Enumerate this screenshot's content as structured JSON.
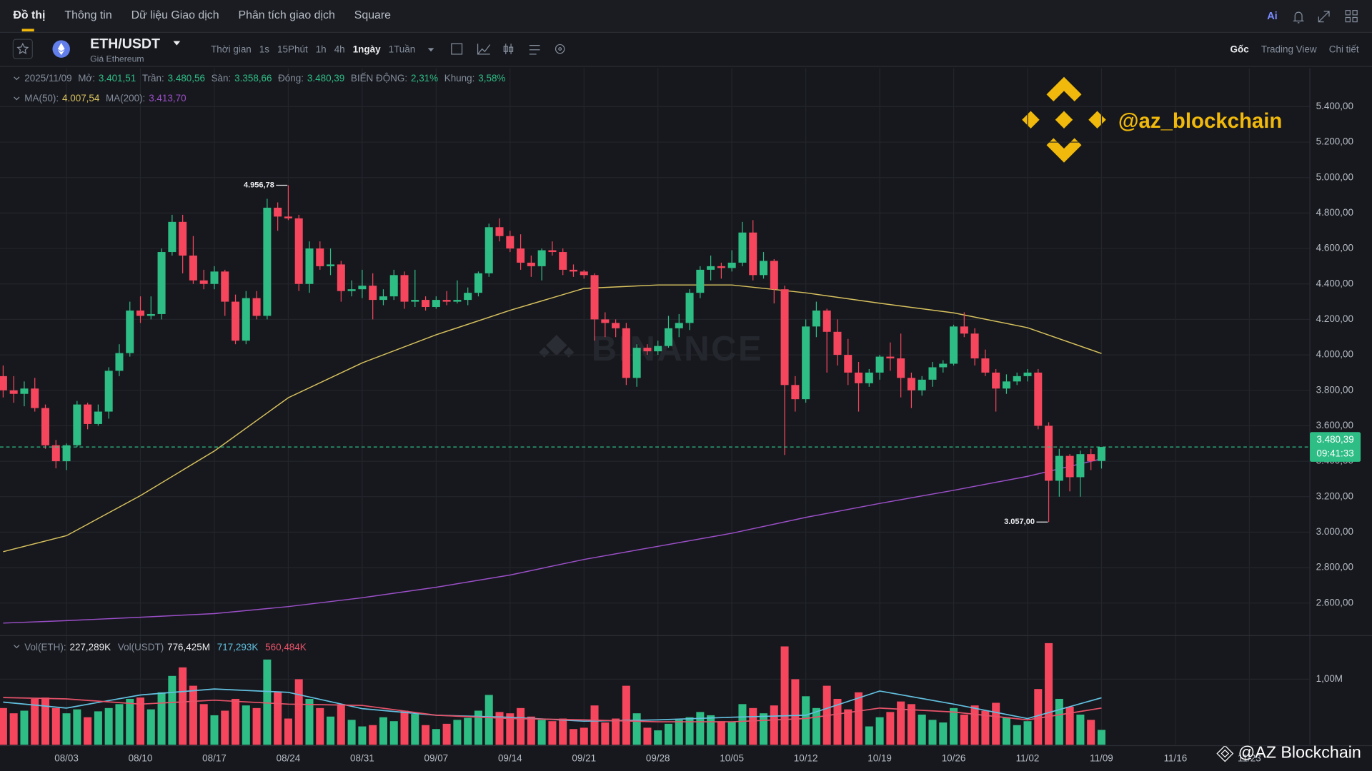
{
  "nav": {
    "tabs": [
      "Đồ thị",
      "Thông tin",
      "Dữ liệu Giao dịch",
      "Phân tích giao dịch",
      "Square"
    ],
    "ai": "Ai"
  },
  "toolbar": {
    "symbol": "ETH/USDT",
    "subtitle": "Giá Ethereum",
    "intervals": [
      "Thời gian",
      "1s",
      "15Phút",
      "1h",
      "4h",
      "1ngày",
      "1Tuần"
    ],
    "views": [
      "Gốc",
      "Trading View",
      "Chi tiết"
    ]
  },
  "watermarks": {
    "brand": "BINANCE",
    "handle": "@az_blockchain",
    "footer": "@AZ Blockchain"
  },
  "chart_data": [
    {
      "type": "candlestick",
      "date": "2025/11/09",
      "info": [
        {
          "label": "Mở:",
          "value": "3.401,51"
        },
        {
          "label": "Trần:",
          "value": "3.480,56"
        },
        {
          "label": "Sàn:",
          "value": "3.358,66"
        },
        {
          "label": "Đóng:",
          "value": "3.480,39"
        },
        {
          "label": "BIẾN ĐỘNG:",
          "value": "2,31%"
        },
        {
          "label": "Khung:",
          "value": "3,58%"
        }
      ],
      "colors": {
        "up": "#2ebd85",
        "down": "#f6465d"
      },
      "grid": true,
      "ylim": [
        2417,
        5617
      ],
      "yticks": [
        {
          "value": 2600,
          "label": "2.600,00"
        },
        {
          "value": 2800,
          "label": "2.800,00"
        },
        {
          "value": 3000,
          "label": "3.000,00"
        },
        {
          "value": 3200,
          "label": "3.200,00"
        },
        {
          "value": 3400,
          "label": "3.400,00"
        },
        {
          "value": 3600,
          "label": "3.600,00"
        },
        {
          "value": 3800,
          "label": "3.800,00"
        },
        {
          "value": 4000,
          "label": "4.000,00"
        },
        {
          "value": 4200,
          "label": "4.200,00"
        },
        {
          "value": 4400,
          "label": "4.400,00"
        },
        {
          "value": 4600,
          "label": "4.600,00"
        },
        {
          "value": 4800,
          "label": "4.800,00"
        },
        {
          "value": 5000,
          "label": "5.000,00"
        },
        {
          "value": 5200,
          "label": "5.200,00"
        },
        {
          "value": 5400,
          "label": "5.400,00"
        }
      ],
      "xticks": [
        {
          "value": 6,
          "label": "08/03"
        },
        {
          "value": 13,
          "label": "08/10"
        },
        {
          "value": 20,
          "label": "08/17"
        },
        {
          "value": 27,
          "label": "08/24"
        },
        {
          "value": 34,
          "label": "08/31"
        },
        {
          "value": 41,
          "label": "09/07"
        },
        {
          "value": 48,
          "label": "09/14"
        },
        {
          "value": 55,
          "label": "09/21"
        },
        {
          "value": 62,
          "label": "09/28"
        },
        {
          "value": 69,
          "label": "10/05"
        },
        {
          "value": 76,
          "label": "10/12"
        },
        {
          "value": 83,
          "label": "10/19"
        },
        {
          "value": 90,
          "label": "10/26"
        },
        {
          "value": 97,
          "label": "11/02"
        },
        {
          "value": 104,
          "label": "11/09"
        },
        {
          "value": 111,
          "label": "11/16"
        },
        {
          "value": 118,
          "label": "11/23"
        }
      ],
      "open": [
        3880,
        3800,
        3780,
        3810,
        3700,
        3490,
        3400,
        3490,
        3720,
        3610,
        3680,
        3910,
        4010,
        4250,
        4220,
        4230,
        4580,
        4750,
        4560,
        4420,
        4400,
        4470,
        4300,
        4080,
        4320,
        4220,
        4830,
        4780,
        4770,
        4400,
        4600,
        4500,
        4510,
        4360,
        4370,
        4390,
        4310,
        4330,
        4450,
        4300,
        4310,
        4270,
        4310,
        4300,
        4310,
        4350,
        4460,
        4720,
        4670,
        4600,
        4520,
        4500,
        4590,
        4580,
        4480,
        4470,
        4450,
        4200,
        4180,
        4150,
        3870,
        4040,
        4020,
        4050,
        4150,
        4180,
        4350,
        4480,
        4500,
        4490,
        4520,
        4690,
        4450,
        4530,
        4370,
        3830,
        3750,
        4160,
        4250,
        4130,
        4000,
        3900,
        3840,
        3900,
        3990,
        3980,
        3870,
        3800,
        3860,
        3930,
        3950,
        4160,
        4120,
        3980,
        3900,
        3810,
        3850,
        3880,
        3900,
        3600,
        3290,
        3430,
        3310,
        3440,
        3401.51
      ],
      "high": [
        3940,
        3880,
        3850,
        3870,
        3720,
        3520,
        3500,
        3740,
        3730,
        3720,
        3930,
        4060,
        4300,
        4330,
        4330,
        4600,
        4790,
        4790,
        4670,
        4480,
        4500,
        4480,
        4340,
        4360,
        4360,
        4880,
        4860,
        4956.78,
        4790,
        4640,
        4640,
        4600,
        4530,
        4420,
        4480,
        4460,
        4370,
        4480,
        4470,
        4480,
        4330,
        4330,
        4360,
        4420,
        4380,
        4470,
        4740,
        4770,
        4700,
        4680,
        4560,
        4600,
        4640,
        4600,
        4510,
        4480,
        4460,
        4240,
        4200,
        4180,
        4060,
        4060,
        4080,
        4220,
        4230,
        4370,
        4500,
        4560,
        4520,
        4590,
        4750,
        4760,
        4580,
        4540,
        4390,
        3880,
        4200,
        4300,
        4260,
        4200,
        4090,
        3960,
        3920,
        4000,
        4070,
        4120,
        3900,
        3880,
        3960,
        3970,
        4170,
        4240,
        4150,
        4030,
        3920,
        3890,
        3900,
        3920,
        3920,
        3620,
        3470,
        3440,
        3460,
        3470,
        3480.56
      ],
      "low": [
        3760,
        3730,
        3710,
        3680,
        3470,
        3360,
        3350,
        3480,
        3580,
        3600,
        3640,
        3880,
        3990,
        4180,
        4200,
        4200,
        4560,
        4460,
        4400,
        4370,
        4370,
        4220,
        4060,
        4060,
        4200,
        4200,
        4700,
        4760,
        4360,
        4350,
        4480,
        4450,
        4300,
        4330,
        4320,
        4200,
        4280,
        4310,
        4260,
        4270,
        4250,
        4260,
        4280,
        4290,
        4280,
        4330,
        4440,
        4640,
        4580,
        4480,
        4440,
        4420,
        4560,
        4450,
        4440,
        4430,
        4080,
        4100,
        4100,
        3830,
        3820,
        4000,
        4000,
        4040,
        4100,
        4140,
        4320,
        4420,
        4430,
        4470,
        4500,
        4420,
        4430,
        4290,
        3435,
        3680,
        3730,
        4100,
        3900,
        3940,
        3830,
        3680,
        3820,
        3860,
        3910,
        3760,
        3700,
        3770,
        3820,
        3900,
        3940,
        4100,
        3940,
        3880,
        3680,
        3780,
        3830,
        3850,
        3580,
        3057,
        3200,
        3230,
        3200,
        3350,
        3358.66
      ],
      "close": [
        3800,
        3780,
        3810,
        3700,
        3490,
        3400,
        3490,
        3720,
        3610,
        3680,
        3910,
        4010,
        4250,
        4220,
        4230,
        4580,
        4750,
        4560,
        4420,
        4400,
        4470,
        4300,
        4080,
        4320,
        4220,
        4830,
        4780,
        4770,
        4400,
        4600,
        4500,
        4510,
        4360,
        4370,
        4390,
        4310,
        4330,
        4450,
        4300,
        4310,
        4270,
        4310,
        4300,
        4310,
        4350,
        4460,
        4720,
        4670,
        4600,
        4520,
        4500,
        4590,
        4580,
        4480,
        4470,
        4450,
        4200,
        4180,
        4150,
        3870,
        4040,
        4020,
        4050,
        4150,
        4180,
        4350,
        4480,
        4500,
        4490,
        4520,
        4690,
        4450,
        4530,
        4370,
        3830,
        3750,
        4160,
        4250,
        4130,
        4000,
        3900,
        3840,
        3900,
        3990,
        3980,
        3870,
        3800,
        3860,
        3930,
        3950,
        4160,
        4120,
        3980,
        3900,
        3810,
        3850,
        3880,
        3900,
        3600,
        3290,
        3430,
        3310,
        3440,
        3400,
        3480.39
      ],
      "ma_lines": [
        {
          "name": "MA(50):",
          "value_label": "4.007,54",
          "color": "#d8c25e",
          "x": [
            0,
            6,
            13,
            20,
            27,
            34,
            41,
            48,
            55,
            62,
            69,
            76,
            83,
            90,
            97,
            104
          ],
          "values": [
            2890,
            2980,
            3206,
            3458,
            3758,
            3955,
            4113,
            4251,
            4375,
            4394,
            4394,
            4350,
            4291,
            4237,
            4153,
            4007.54
          ]
        },
        {
          "name": "MA(200):",
          "value_label": "3.413,70",
          "color": "#9b4fc9",
          "x": [
            0,
            6,
            13,
            20,
            27,
            34,
            41,
            48,
            55,
            62,
            69,
            76,
            83,
            90,
            97,
            104
          ],
          "values": [
            2487,
            2501,
            2520,
            2541,
            2580,
            2630,
            2689,
            2758,
            2846,
            2920,
            2994,
            3083,
            3162,
            3236,
            3315,
            3413.7
          ]
        }
      ],
      "last_price": {
        "value": 3480.39,
        "label": "3.480,39"
      },
      "countdown": "09:41:33",
      "high_label": {
        "value": 4956.78,
        "label": "4.956,78"
      },
      "low_label": {
        "value": 3057,
        "label": "3.057,00"
      }
    },
    {
      "type": "volume",
      "legend": [
        {
          "label": "Vol(ETH):",
          "value": "227,289K"
        },
        {
          "label": "Vol(USDT)",
          "value": "776,425M"
        }
      ],
      "ylim": [
        0,
        1653000
      ],
      "yticks": [
        {
          "value": 1000000,
          "label": "1,00M"
        }
      ],
      "values": [
        560000,
        480000,
        520000,
        700000,
        720000,
        560000,
        480000,
        540000,
        420000,
        510000,
        560000,
        620000,
        700000,
        720000,
        540000,
        800000,
        1050000,
        1180000,
        900000,
        620000,
        450000,
        520000,
        700000,
        600000,
        560000,
        1300000,
        800000,
        400000,
        1000000,
        700000,
        560000,
        430000,
        620000,
        380000,
        280000,
        300000,
        420000,
        360000,
        520000,
        470000,
        300000,
        240000,
        320000,
        380000,
        410000,
        520000,
        760000,
        500000,
        480000,
        560000,
        430000,
        380000,
        360000,
        400000,
        240000,
        260000,
        600000,
        340000,
        400000,
        900000,
        480000,
        260000,
        220000,
        320000,
        380000,
        420000,
        500000,
        450000,
        360000,
        350000,
        620000,
        560000,
        480000,
        600000,
        1500000,
        1000000,
        740000,
        560000,
        900000,
        700000,
        540000,
        800000,
        280000,
        420000,
        500000,
        660000,
        620000,
        460000,
        380000,
        340000,
        560000,
        460000,
        600000,
        520000,
        640000,
        420000,
        300000,
        360000,
        850000,
        1550000,
        700000,
        580000,
        460000,
        380000,
        227289
      ],
      "ma_lines": [
        {
          "value_label": "717,293K",
          "color": "#62c0e0",
          "x": [
            0,
            6,
            13,
            20,
            27,
            34,
            41,
            48,
            55,
            62,
            69,
            76,
            83,
            90,
            97,
            104
          ],
          "values": [
            650000,
            560000,
            760000,
            850000,
            800000,
            550000,
            450000,
            420000,
            360000,
            380000,
            420000,
            450000,
            820000,
            620000,
            400000,
            717293
          ]
        },
        {
          "value_label": "560,484K",
          "color": "#e8536a",
          "x": [
            0,
            6,
            13,
            20,
            27,
            34,
            41,
            48,
            55,
            62,
            69,
            76,
            83,
            90,
            97,
            104
          ],
          "values": [
            720000,
            700000,
            620000,
            680000,
            620000,
            600000,
            450000,
            400000,
            380000,
            350000,
            350000,
            400000,
            560000,
            500000,
            380000,
            560484
          ]
        }
      ]
    }
  ]
}
